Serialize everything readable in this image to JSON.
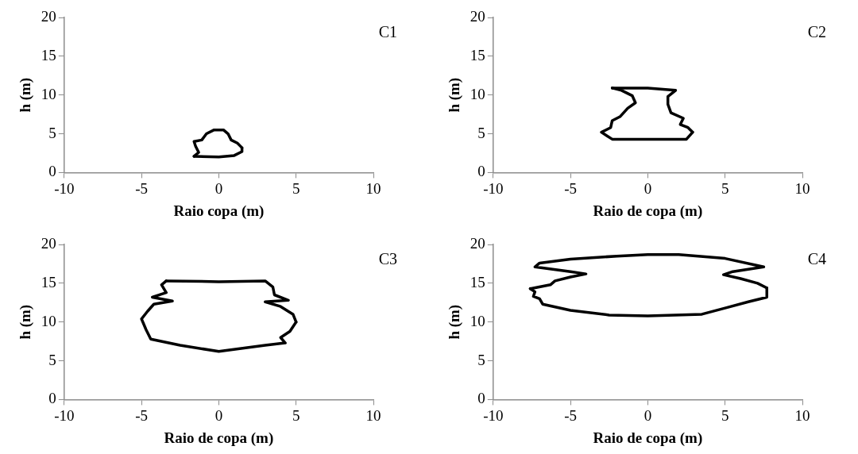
{
  "chart_data": [
    {
      "type": "line",
      "annotations": [
        "C1"
      ],
      "xlabel": "Raio copa (m)",
      "ylabel": "h (m)",
      "xlim": [
        -10,
        10
      ],
      "xticks": [
        -10,
        -5,
        0,
        5,
        10
      ],
      "ylim": [
        0,
        20
      ],
      "yticks": [
        0,
        5,
        10,
        15,
        20
      ],
      "legend": false,
      "marker": "none",
      "line_style": "solid",
      "series": [
        {
          "color": "#000000",
          "x": [
            -1.6,
            0,
            1.0,
            1.5,
            1.5
          ],
          "values": [
            2.1,
            2.0,
            2.2,
            2.7,
            3.2
          ]
        },
        {
          "color": "#000000",
          "x": [
            1.5,
            1.2,
            0.8,
            0.6,
            0.3,
            -0.3,
            -0.8,
            -1.1,
            -1.6,
            -1.5,
            -1.3,
            -1.6
          ],
          "values": [
            3.2,
            3.8,
            4.2,
            5.0,
            5.5,
            5.5,
            5.0,
            4.2,
            4.0,
            3.4,
            2.6,
            2.1
          ]
        }
      ]
    },
    {
      "type": "line",
      "annotations": [
        "C2"
      ],
      "xlabel": "Raio de copa (m)",
      "ylabel": "h (m)",
      "xlim": [
        -10,
        10
      ],
      "xticks": [
        -10,
        -5,
        0,
        5,
        10
      ],
      "ylim": [
        0,
        20
      ],
      "yticks": [
        0,
        5,
        10,
        15,
        20
      ],
      "legend": false,
      "marker": "none",
      "line_style": "solid",
      "series": [
        {
          "color": "#000000",
          "x": [
            -2.3,
            0,
            1.8,
            1.3,
            1.3,
            1.5,
            2.3,
            2.1,
            2.6,
            2.9
          ],
          "values": [
            10.9,
            10.9,
            10.6,
            9.8,
            8.8,
            7.7,
            7.0,
            6.2,
            5.8,
            5.2
          ]
        },
        {
          "color": "#000000",
          "x": [
            2.9,
            2.5,
            0,
            -2.3,
            -3.0,
            -2.4,
            -2.3,
            -1.8,
            -1.3,
            -0.8,
            -1.0,
            -1.7,
            -2.3
          ],
          "values": [
            5.2,
            4.3,
            4.3,
            4.3,
            5.2,
            5.8,
            6.7,
            7.2,
            8.3,
            9.0,
            9.9,
            10.6,
            10.9
          ]
        }
      ]
    },
    {
      "type": "line",
      "annotations": [
        "C3"
      ],
      "xlabel": "Raio de copa (m)",
      "ylabel": "h (m)",
      "xlim": [
        -10,
        10
      ],
      "xticks": [
        -10,
        -5,
        0,
        5,
        10
      ],
      "ylim": [
        0,
        20
      ],
      "yticks": [
        0,
        5,
        10,
        15,
        20
      ],
      "legend": false,
      "marker": "none",
      "line_style": "solid",
      "series": [
        {
          "color": "#000000",
          "x": [
            -3.4,
            0,
            3.0,
            3.5,
            3.6,
            4.5,
            3.0,
            4.0,
            4.8,
            5.0
          ],
          "values": [
            15.3,
            15.2,
            15.3,
            14.5,
            13.5,
            12.8,
            12.6,
            12.0,
            11.0,
            10.0
          ]
        },
        {
          "color": "#000000",
          "x": [
            5.0,
            4.6,
            4.0,
            4.3,
            3.0,
            0,
            -2.5,
            -4.4,
            -4.7,
            -5.0,
            -4.6,
            -4.2,
            -3.0,
            -4.3,
            -3.4,
            -3.7,
            -3.4
          ],
          "values": [
            10.0,
            8.8,
            8.0,
            7.3,
            7.0,
            6.2,
            7.0,
            7.8,
            9.0,
            10.4,
            11.4,
            12.3,
            12.7,
            13.2,
            13.8,
            14.8,
            15.3
          ]
        }
      ]
    },
    {
      "type": "line",
      "annotations": [
        "C4"
      ],
      "xlabel": "Raio de copa (m)",
      "ylabel": "h (m)",
      "xlim": [
        -10,
        10
      ],
      "xticks": [
        -10,
        -5,
        0,
        5,
        10
      ],
      "ylim": [
        0,
        20
      ],
      "yticks": [
        0,
        5,
        10,
        15,
        20
      ],
      "legend": false,
      "marker": "none",
      "line_style": "solid",
      "series": [
        {
          "color": "#000000",
          "x": [
            -7.6,
            -6.3,
            -6,
            -5,
            -4,
            -5,
            -7.3,
            -7.0,
            -5,
            -2,
            0,
            2,
            5,
            7.5,
            5.5,
            4.9,
            6,
            7.1,
            7.7
          ],
          "values": [
            14.3,
            14.8,
            15.3,
            15.8,
            16.2,
            16.5,
            17.1,
            17.6,
            18.1,
            18.5,
            18.7,
            18.7,
            18.2,
            17.1,
            16.5,
            16.1,
            15.6,
            15,
            14.4
          ]
        },
        {
          "color": "#000000",
          "x": [
            7.7,
            7.7,
            6.5,
            5,
            3.5,
            0,
            -2.5,
            -5,
            -6.8,
            -7,
            -7.4,
            -7.3,
            -7.6
          ],
          "values": [
            14.4,
            13.2,
            12.6,
            11.8,
            11.0,
            10.8,
            10.9,
            11.5,
            12.3,
            13.0,
            13.3,
            13.9,
            14.3
          ]
        }
      ]
    }
  ]
}
